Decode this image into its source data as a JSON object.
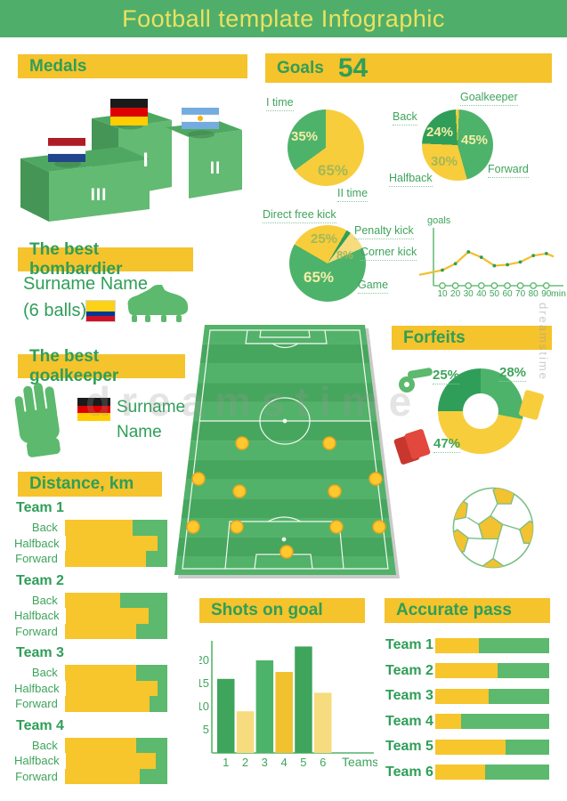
{
  "title": "Football template Infographic",
  "watermark": {
    "main": "dreamstime",
    "side": "dreamstime"
  },
  "colors": {
    "banner_green": "#4FAF6A",
    "header_yellow": "#F5C32C",
    "text_green": "#2F9E58",
    "green": "#4DB36A",
    "dark_green": "#2F9E59",
    "yellow": "#F7CD3B",
    "light_yellow": "#F6DC7E",
    "bar_yellow": "#F7C52C",
    "bar_green": "#5CB96D",
    "field_light": "#52B269",
    "field_dark": "#47A65E",
    "player_dot": "#FFC82E",
    "red_card": "#E2483D",
    "line_yellow": "#F2BE2B"
  },
  "medals": {
    "header": "Medals",
    "first": "I",
    "second": "II",
    "third": "III",
    "flags": {
      "first": "germany",
      "second": "argentina",
      "third": "netherlands"
    }
  },
  "goals": {
    "header": "Goals",
    "total": "54"
  },
  "bombardier": {
    "header": "The best bombardier",
    "player": "Surname Name",
    "balls": "(6 balls)",
    "flag": "colombia",
    "icon": "boot-icon"
  },
  "goalkeeper": {
    "header": "The best goalkeeper",
    "surname": "Surname",
    "name": "Name",
    "flag": "germany",
    "icon": "glove-icon"
  },
  "forfeits": {
    "header": "Forfeits"
  },
  "distance": {
    "header": "Distance, km"
  },
  "shots": {
    "header": "Shots on goal"
  },
  "accurate": {
    "header": "Accurate pass"
  },
  "chart_data": [
    {
      "id": "time-pie",
      "type": "pie",
      "start_deg": 0,
      "slices": [
        {
          "label": "II time",
          "pct": 65,
          "pct_label": "65%",
          "color": "#F7CD3B"
        },
        {
          "label": "I time",
          "pct": 35,
          "pct_label": "35%",
          "color": "#4DB36A"
        }
      ]
    },
    {
      "id": "position-pie",
      "type": "pie",
      "start_deg": -3,
      "slices": [
        {
          "label": "Goalkeeper",
          "pct": 1.5,
          "pct_label": "",
          "color": "#F7CD3B"
        },
        {
          "label": "Forward",
          "pct": 45,
          "pct_label": "45%",
          "color": "#4DB36A"
        },
        {
          "label": "Halfback",
          "pct": 30,
          "pct_label": "30%",
          "color": "#F7CD3B"
        },
        {
          "label": "Back",
          "pct": 23.5,
          "pct_label": "24%",
          "color": "#2F9E59"
        }
      ]
    },
    {
      "id": "kick-pie",
      "type": "pie",
      "start_deg": -60,
      "slices": [
        {
          "label": "Direct free kick",
          "pct": 25,
          "pct_label": "25%",
          "color": "#F7CD3B"
        },
        {
          "label": "Penalty kick",
          "pct": 2,
          "pct_label": "",
          "color": "#2F9E59"
        },
        {
          "label": "Corner kick",
          "pct": 8,
          "pct_label": "8%",
          "color": "#F6DC7E"
        },
        {
          "label": "Game",
          "pct": 65,
          "pct_label": "65%",
          "color": "#4DB36A"
        }
      ]
    },
    {
      "id": "goals-by-minute",
      "type": "line",
      "ylabel": "goals",
      "xlabel": "min.",
      "xticks": [
        "10",
        "20",
        "30",
        "40",
        "50",
        "60",
        "70",
        "80",
        "90"
      ],
      "x_rel": [
        0,
        0.172,
        0.269,
        0.366,
        0.462,
        0.559,
        0.656,
        0.752,
        0.849,
        0.946,
        1.0
      ],
      "y_rel": [
        0.32,
        0.46,
        0.65,
        1.0,
        0.84,
        0.59,
        0.62,
        0.7,
        0.89,
        0.95,
        0.86
      ],
      "line_color": "#F2BE2B",
      "marker_color": "#2F9E58",
      "axis_color": "#6BBD7C"
    },
    {
      "id": "forfeits-donut",
      "type": "donut",
      "start_deg": 0,
      "slices": [
        {
          "label": "yellow cards",
          "pct": 28,
          "pct_label": "28%",
          "color": "#4DB36A",
          "icon": "yellow-card-icon"
        },
        {
          "label": "red cards",
          "pct": 47,
          "pct_label": "47%",
          "color": "#F7CD3B",
          "icon": "red-cards-icon"
        },
        {
          "label": "whistle",
          "pct": 25,
          "pct_label": "25%",
          "color": "#2F9E59",
          "icon": "whistle-icon"
        }
      ]
    },
    {
      "id": "distance-km",
      "type": "stacked-bar-h",
      "title": "Distance, km",
      "series_colors": {
        "yellow": "#F7C52C",
        "green": "#5CB96D"
      },
      "teams": [
        {
          "name": "Team 1",
          "rows": [
            {
              "label": "Back",
              "yellow": 0.66
            },
            {
              "label": "Halfback",
              "yellow": 0.9
            },
            {
              "label": "Forward",
              "yellow": 0.79
            }
          ]
        },
        {
          "name": "Team 2",
          "rows": [
            {
              "label": "Back",
              "yellow": 0.54
            },
            {
              "label": "Halfback",
              "yellow": 0.82
            },
            {
              "label": "Forward",
              "yellow": 0.7
            }
          ]
        },
        {
          "name": "Team 3",
          "rows": [
            {
              "label": "Back",
              "yellow": 0.7
            },
            {
              "label": "Halfback",
              "yellow": 0.9
            },
            {
              "label": "Forward",
              "yellow": 0.83
            }
          ]
        },
        {
          "name": "Team 4",
          "rows": [
            {
              "label": "Back",
              "yellow": 0.7
            },
            {
              "label": "Halfback",
              "yellow": 0.89
            },
            {
              "label": "Forward",
              "yellow": 0.73
            }
          ]
        }
      ]
    },
    {
      "id": "shots-on-goal",
      "type": "bar",
      "title": "Shots on goal",
      "categories": [
        "1",
        "2",
        "3",
        "4",
        "5",
        "6"
      ],
      "values": [
        16,
        9,
        20,
        17.5,
        23,
        13
      ],
      "bar_colors": [
        "#3FA45C",
        "#F6DC7E",
        "#4DB36A",
        "#F2C12E",
        "#3FA45C",
        "#F6DC7E"
      ],
      "yticks": [
        5,
        10,
        15,
        20
      ],
      "ylim": [
        0,
        25
      ],
      "xlabel": "Teams"
    },
    {
      "id": "accurate-pass",
      "type": "stacked-bar-h",
      "title": "Accurate pass",
      "teams": [
        {
          "name": "Team 1",
          "yellow": 0.38
        },
        {
          "name": "Team 2",
          "yellow": 0.55
        },
        {
          "name": "Team 3",
          "yellow": 0.47
        },
        {
          "name": "Team 4",
          "yellow": 0.23
        },
        {
          "name": "Team 5",
          "yellow": 0.62
        },
        {
          "name": "Team 6",
          "yellow": 0.44
        }
      ]
    }
  ]
}
